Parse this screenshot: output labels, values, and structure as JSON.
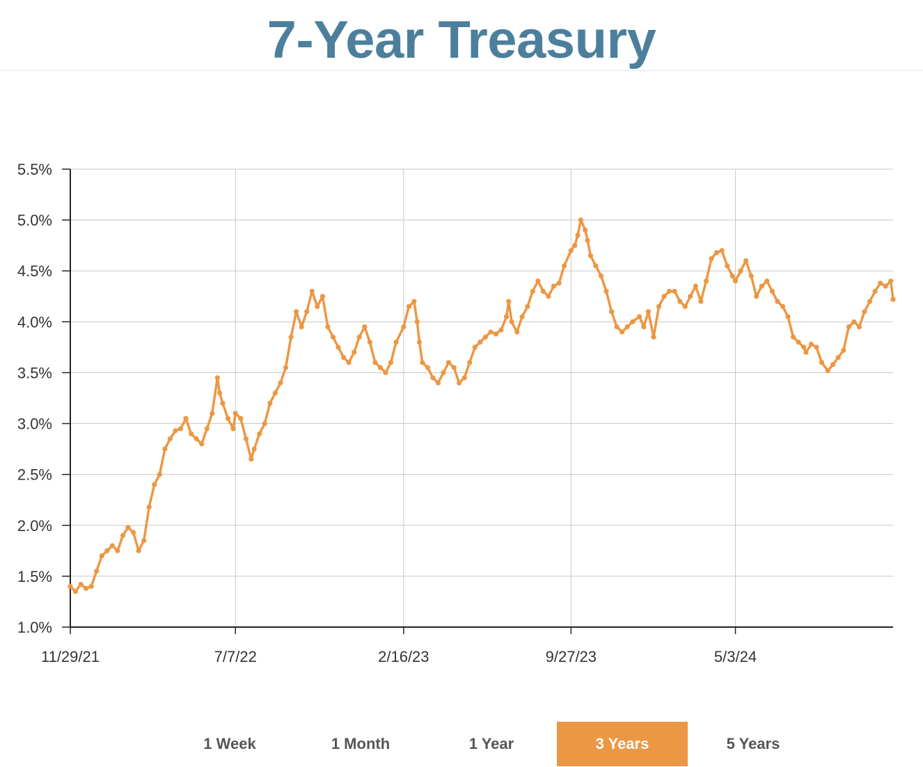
{
  "title": "7-Year Treasury",
  "colors": {
    "title": "#4c7f9c",
    "line": "#ec9744",
    "active_button": "#ec9744",
    "grid": "#c8c8c8"
  },
  "range_buttons": [
    {
      "label": "1 Week",
      "active": false
    },
    {
      "label": "1 Month",
      "active": false
    },
    {
      "label": "1 Year",
      "active": false
    },
    {
      "label": "3 Years",
      "active": true
    },
    {
      "label": "5 Years",
      "active": false
    }
  ],
  "chart_data": {
    "type": "line",
    "title": "",
    "xlabel": "",
    "ylabel": "",
    "ylim": [
      1.0,
      5.5
    ],
    "xlim": [
      "2021-11-29",
      "2024-11-29"
    ],
    "yticks": [
      1.0,
      1.5,
      2.0,
      2.5,
      3.0,
      3.5,
      4.0,
      4.5,
      5.0,
      5.5
    ],
    "ytick_labels": [
      "1.0%",
      "1.5%",
      "2.0%",
      "2.5%",
      "3.0%",
      "3.5%",
      "4.0%",
      "4.5%",
      "5.0%",
      "5.5%"
    ],
    "xticks": [
      "2021-11-29",
      "2022-07-07",
      "2023-02-16",
      "2023-09-27",
      "2024-05-03"
    ],
    "xtick_labels": [
      "11/29/21",
      "7/7/22",
      "2/16/23",
      "9/27/23",
      "5/3/24"
    ],
    "grid": true,
    "markers": true,
    "series": [
      {
        "x": [
          "2021-11-29",
          "2021-12-06",
          "2021-12-13",
          "2021-12-20",
          "2021-12-27",
          "2022-01-03",
          "2022-01-10",
          "2022-01-17",
          "2022-01-24",
          "2022-01-31",
          "2022-02-07",
          "2022-02-14",
          "2022-02-21",
          "2022-02-28",
          "2022-03-07",
          "2022-03-14",
          "2022-03-21",
          "2022-03-28",
          "2022-04-04",
          "2022-04-11",
          "2022-04-18",
          "2022-04-25",
          "2022-05-02",
          "2022-05-09",
          "2022-05-16",
          "2022-05-23",
          "2022-05-30",
          "2022-06-06",
          "2022-06-13",
          "2022-06-16",
          "2022-06-20",
          "2022-06-27",
          "2022-07-04",
          "2022-07-07",
          "2022-07-14",
          "2022-07-21",
          "2022-07-28",
          "2022-08-01",
          "2022-08-08",
          "2022-08-15",
          "2022-08-22",
          "2022-08-29",
          "2022-09-05",
          "2022-09-12",
          "2022-09-19",
          "2022-09-26",
          "2022-10-03",
          "2022-10-10",
          "2022-10-17",
          "2022-10-24",
          "2022-10-31",
          "2022-11-07",
          "2022-11-14",
          "2022-11-21",
          "2022-11-28",
          "2022-12-05",
          "2022-12-12",
          "2022-12-19",
          "2022-12-26",
          "2023-01-02",
          "2023-01-09",
          "2023-01-16",
          "2023-01-23",
          "2023-01-30",
          "2023-02-06",
          "2023-02-16",
          "2023-02-23",
          "2023-03-02",
          "2023-03-06",
          "2023-03-09",
          "2023-03-13",
          "2023-03-20",
          "2023-03-27",
          "2023-04-03",
          "2023-04-10",
          "2023-04-17",
          "2023-04-24",
          "2023-05-01",
          "2023-05-08",
          "2023-05-15",
          "2023-05-22",
          "2023-05-29",
          "2023-06-05",
          "2023-06-12",
          "2023-06-19",
          "2023-06-26",
          "2023-07-03",
          "2023-07-06",
          "2023-07-10",
          "2023-07-17",
          "2023-07-24",
          "2023-07-31",
          "2023-08-07",
          "2023-08-14",
          "2023-08-21",
          "2023-08-28",
          "2023-09-04",
          "2023-09-11",
          "2023-09-18",
          "2023-09-27",
          "2023-10-02",
          "2023-10-06",
          "2023-10-10",
          "2023-10-16",
          "2023-10-19",
          "2023-10-23",
          "2023-10-30",
          "2023-11-06",
          "2023-11-13",
          "2023-11-20",
          "2023-11-27",
          "2023-12-04",
          "2023-12-11",
          "2023-12-18",
          "2023-12-27",
          "2024-01-02",
          "2024-01-08",
          "2024-01-15",
          "2024-01-22",
          "2024-01-29",
          "2024-02-05",
          "2024-02-12",
          "2024-02-19",
          "2024-02-26",
          "2024-03-04",
          "2024-03-11",
          "2024-03-18",
          "2024-03-25",
          "2024-04-01",
          "2024-04-08",
          "2024-04-15",
          "2024-04-22",
          "2024-04-29",
          "2024-05-03",
          "2024-05-10",
          "2024-05-17",
          "2024-05-24",
          "2024-05-31",
          "2024-06-07",
          "2024-06-14",
          "2024-06-21",
          "2024-06-28",
          "2024-07-05",
          "2024-07-12",
          "2024-07-19",
          "2024-07-26",
          "2024-08-02",
          "2024-08-05",
          "2024-08-12",
          "2024-08-19",
          "2024-08-26",
          "2024-09-03",
          "2024-09-10",
          "2024-09-17",
          "2024-09-24",
          "2024-10-01",
          "2024-10-08",
          "2024-10-15",
          "2024-10-22",
          "2024-10-29",
          "2024-11-05",
          "2024-11-12",
          "2024-11-19",
          "2024-11-26",
          "2024-11-29"
        ],
        "y": [
          1.4,
          1.35,
          1.42,
          1.38,
          1.4,
          1.55,
          1.7,
          1.75,
          1.8,
          1.75,
          1.9,
          1.98,
          1.93,
          1.75,
          1.85,
          2.18,
          2.4,
          2.5,
          2.75,
          2.85,
          2.93,
          2.95,
          3.05,
          2.9,
          2.85,
          2.8,
          2.95,
          3.1,
          3.45,
          3.3,
          3.2,
          3.05,
          2.95,
          3.1,
          3.05,
          2.85,
          2.65,
          2.75,
          2.9,
          3.0,
          3.2,
          3.3,
          3.4,
          3.55,
          3.85,
          4.1,
          3.95,
          4.1,
          4.3,
          4.15,
          4.25,
          3.95,
          3.85,
          3.75,
          3.65,
          3.6,
          3.7,
          3.85,
          3.95,
          3.8,
          3.6,
          3.55,
          3.5,
          3.6,
          3.8,
          3.95,
          4.15,
          4.2,
          4.0,
          3.8,
          3.6,
          3.55,
          3.45,
          3.4,
          3.5,
          3.6,
          3.55,
          3.4,
          3.45,
          3.6,
          3.75,
          3.8,
          3.85,
          3.9,
          3.88,
          3.92,
          4.05,
          4.2,
          4.0,
          3.9,
          4.05,
          4.15,
          4.3,
          4.4,
          4.3,
          4.25,
          4.35,
          4.38,
          4.55,
          4.7,
          4.75,
          4.85,
          5.0,
          4.9,
          4.8,
          4.65,
          4.55,
          4.45,
          4.3,
          4.1,
          3.95,
          3.9,
          3.95,
          4.0,
          4.05,
          3.95,
          4.1,
          3.85,
          4.15,
          4.25,
          4.3,
          4.3,
          4.2,
          4.15,
          4.25,
          4.35,
          4.2,
          4.4,
          4.62,
          4.68,
          4.7,
          4.55,
          4.45,
          4.4,
          4.5,
          4.6,
          4.45,
          4.25,
          4.35,
          4.4,
          4.3,
          4.2,
          4.15,
          4.05,
          3.85,
          3.8,
          3.75,
          3.7,
          3.78,
          3.75,
          3.6,
          3.52,
          3.58,
          3.65,
          3.72,
          3.95,
          4.0,
          3.95,
          4.1,
          4.2,
          4.3,
          4.38,
          4.35,
          4.4,
          4.22
        ]
      }
    ]
  }
}
